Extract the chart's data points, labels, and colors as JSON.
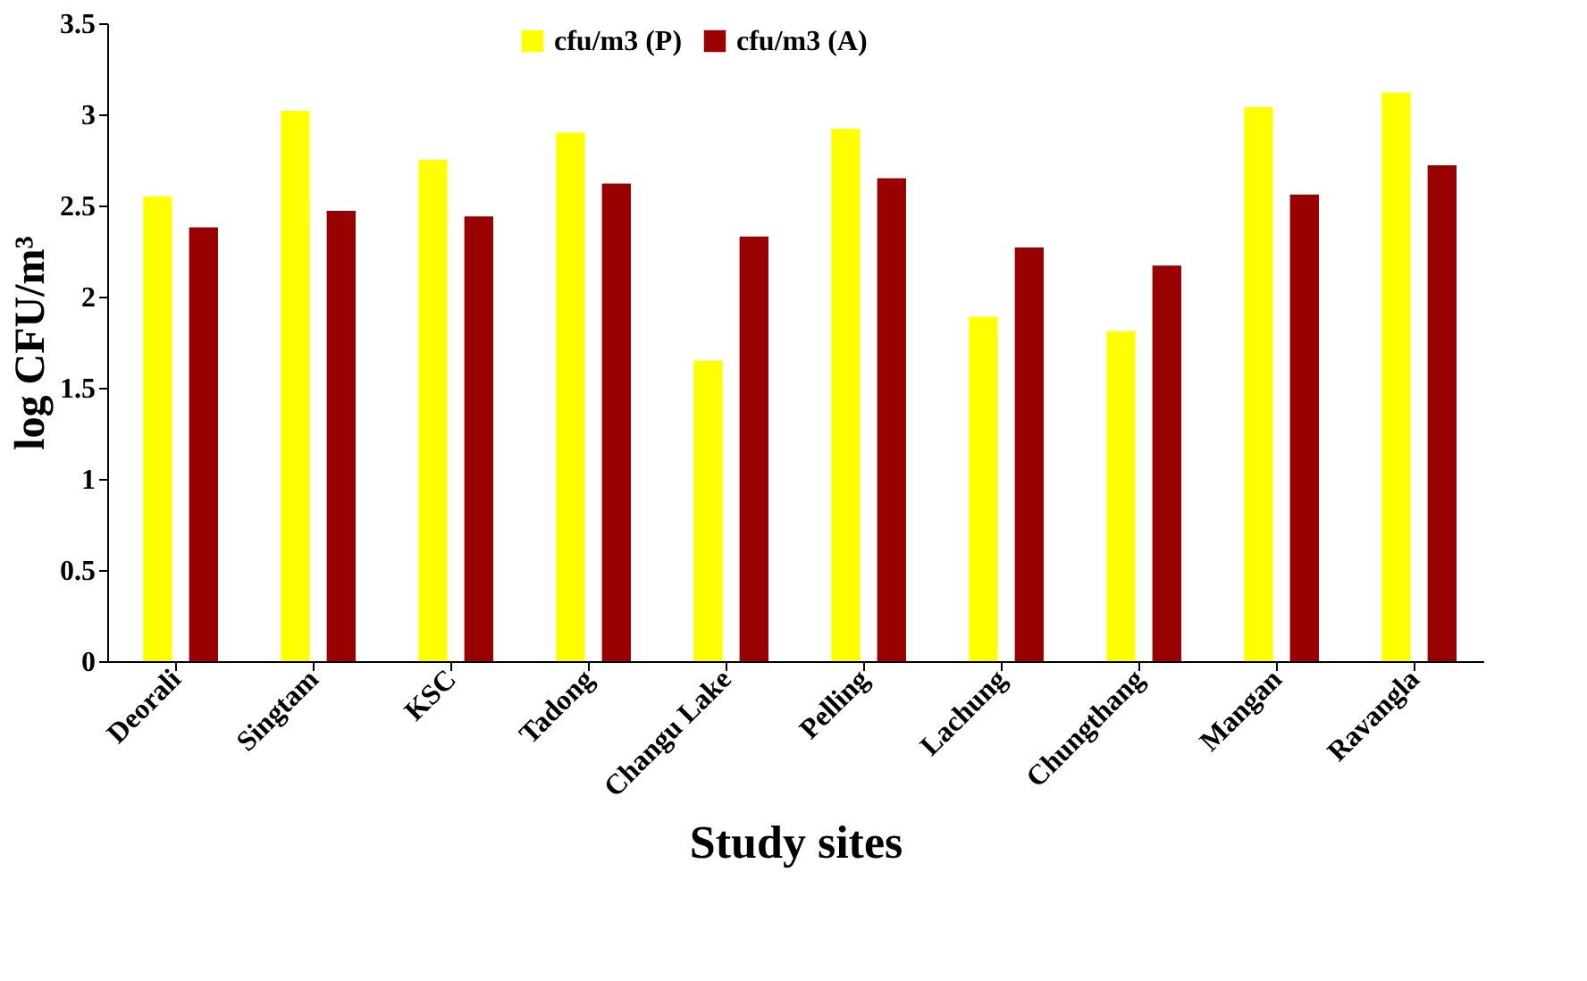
{
  "chart_data": {
    "type": "bar",
    "xlabel": "Study sites",
    "ylabel": "log CFU/m³",
    "categories": [
      "Deorali",
      "Singtam",
      "KSC",
      "Tadong",
      "Changu Lake",
      "Pelling",
      "Lachung",
      "Chungthang",
      "Mangan",
      "Ravangla"
    ],
    "series": [
      {
        "name": "cfu/m3 (P)",
        "color": "#ffff00",
        "values": [
          2.55,
          3.02,
          2.75,
          2.9,
          1.65,
          2.92,
          1.89,
          1.81,
          3.04,
          3.12
        ]
      },
      {
        "name": "cfu/m3 (A)",
        "color": "#990000",
        "values": [
          2.38,
          2.47,
          2.44,
          2.62,
          2.33,
          2.65,
          2.27,
          2.17,
          2.56,
          2.72
        ]
      }
    ],
    "ylim": [
      0,
      3.5
    ],
    "yticks": [
      0,
      0.5,
      1,
      1.5,
      2,
      2.5,
      3,
      3.5
    ],
    "grid": false,
    "legend": "top"
  }
}
